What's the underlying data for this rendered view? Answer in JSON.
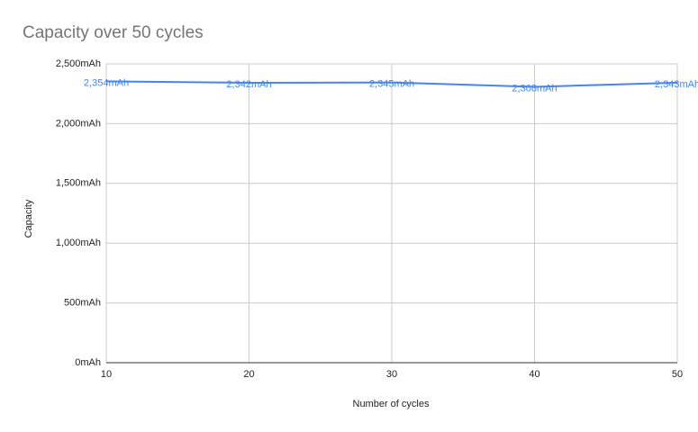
{
  "chart_data": {
    "type": "line",
    "title": "Capacity over 50 cycles",
    "x_label": "Number of cycles",
    "y_label": "Capacity",
    "x": [
      10,
      20,
      30,
      40,
      50
    ],
    "series": [
      {
        "name": "Capacity",
        "color": "#4285f4",
        "values": [
          2354,
          2342,
          2345,
          2308,
          2343
        ],
        "value_labels": [
          "2,354mAh",
          "2,342mAh",
          "2,345mAh",
          "2,308mAh",
          "2,343mAh"
        ]
      }
    ],
    "xlim": [
      10,
      50
    ],
    "xticks": [
      10,
      20,
      30,
      40,
      50
    ],
    "ylim": [
      0,
      2500
    ],
    "yticks": [
      {
        "value": 0,
        "label": "0mAh"
      },
      {
        "value": 500,
        "label": "500mAh"
      },
      {
        "value": 1000,
        "label": "1,000mAh"
      },
      {
        "value": 1500,
        "label": "1,500mAh"
      },
      {
        "value": 2000,
        "label": "2,000mAh"
      },
      {
        "value": 2500,
        "label": "2,500mAh"
      }
    ],
    "grid": true
  }
}
